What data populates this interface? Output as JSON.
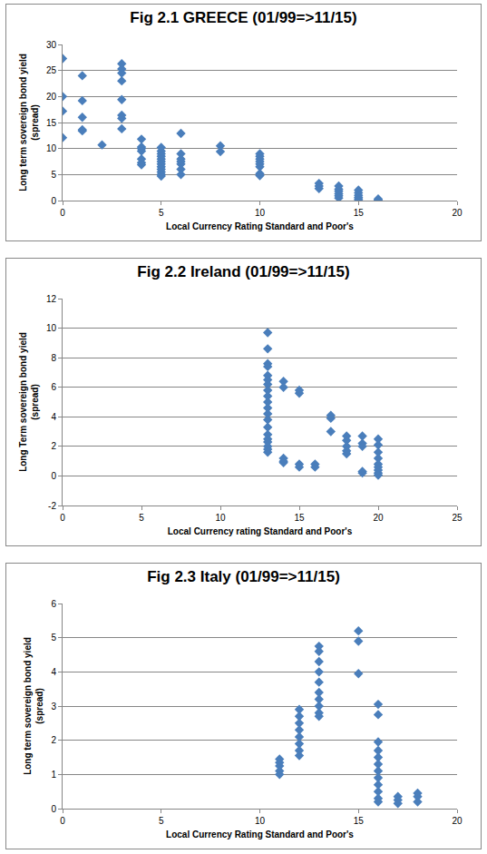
{
  "chart_data": [
    {
      "type": "scatter",
      "title": "Fig 2.1 GREECE (01/99=>11/15)",
      "x_label": "Local Currency Rating Standard and Poor's",
      "y_label": "Long term sovereign bond yield (spread)",
      "x": [
        0,
        0,
        0,
        0,
        1,
        1,
        1,
        1,
        1,
        2,
        3,
        3,
        3,
        3,
        3,
        3,
        3,
        3,
        4,
        4,
        4,
        4,
        4,
        4,
        4,
        5,
        5,
        5,
        5,
        5,
        5,
        5,
        5,
        5,
        5,
        5,
        5,
        6,
        6,
        6,
        6,
        6,
        6,
        6,
        8,
        8,
        10,
        10,
        10,
        10,
        10,
        10,
        10,
        10,
        13,
        13,
        13,
        14,
        14,
        14,
        14,
        14,
        14,
        15,
        15,
        15,
        15,
        15,
        15,
        16,
        16
      ],
      "values": [
        27.3,
        20,
        17.2,
        12.1,
        24,
        19.2,
        16,
        13.6,
        13.4,
        10.7,
        26.3,
        25.3,
        24.5,
        23,
        19.4,
        16.4,
        15.8,
        13.8,
        11.8,
        10.3,
        10,
        9.5,
        8,
        7.3,
        6.9,
        10.2,
        9.5,
        9,
        8.5,
        8,
        7.5,
        7,
        6.5,
        6,
        5.5,
        5,
        4.7,
        12.9,
        9,
        8,
        7.5,
        7,
        6,
        5,
        10.5,
        9.4,
        9,
        8.5,
        8,
        7.5,
        7,
        6.5,
        5.2,
        4.8,
        3.3,
        2.8,
        2.3,
        2.8,
        2.2,
        1.8,
        1.3,
        0.9,
        0.5,
        2,
        1.5,
        1,
        0.6,
        0.3,
        0,
        0.3,
        0.1
      ],
      "color": "#4a7ebb",
      "marker": "diamond",
      "xlim": [
        0,
        20
      ],
      "xticks": [
        0,
        5,
        10,
        15,
        20
      ],
      "ylim": [
        0,
        30
      ],
      "yticks": [
        0,
        5,
        10,
        15,
        20,
        25,
        30
      ],
      "grid": true
    },
    {
      "type": "scatter",
      "title": "Fig 2.2 Ireland (01/99=>11/15)",
      "x_label": "Local Currency rating Standard and Poor's",
      "y_label": "Long Term sovereign bond yield (spread)",
      "x": [
        13,
        13,
        13,
        13,
        13,
        13,
        13,
        13,
        13,
        13,
        13,
        13,
        13,
        13,
        13,
        13,
        13,
        13,
        13,
        13,
        14,
        14,
        14,
        14,
        14,
        15,
        15,
        15,
        15,
        16,
        16,
        17,
        17,
        17,
        18,
        18,
        18,
        18,
        18,
        19,
        19,
        19,
        19,
        19,
        20,
        20,
        20,
        20,
        20,
        20,
        20,
        20,
        20
      ],
      "values": [
        9.7,
        8.6,
        7.6,
        7.4,
        6.8,
        6.5,
        6.2,
        5.8,
        5.4,
        5,
        4.6,
        4.2,
        3.8,
        3.3,
        2.8,
        2.5,
        2.3,
        2,
        1.8,
        1.6,
        6.4,
        6,
        1.2,
        1,
        0.9,
        5.8,
        5.6,
        0.8,
        0.6,
        0.8,
        0.6,
        4.1,
        3.9,
        3,
        2.7,
        2.4,
        2,
        1.7,
        1.5,
        2.7,
        2.2,
        2,
        0.3,
        0.2,
        2.5,
        2.1,
        1.6,
        1.2,
        0.8,
        0.6,
        0.4,
        0.2,
        0.05
      ],
      "color": "#4a7ebb",
      "marker": "diamond",
      "xlim": [
        0,
        25
      ],
      "xticks": [
        0,
        5,
        10,
        15,
        20,
        25
      ],
      "ylim": [
        -2,
        12
      ],
      "yticks": [
        -2,
        0,
        2,
        4,
        6,
        8,
        10,
        12
      ],
      "grid": true
    },
    {
      "type": "scatter",
      "title": "Fig 2.3 Italy (01/99=>11/15)",
      "x_label": "Local Currency Rating Standard and Poor's",
      "y_label": "Long term sovereign bond yield (spread)",
      "x": [
        11,
        11,
        11,
        11,
        11,
        12,
        12,
        12,
        12,
        12,
        12,
        12,
        12,
        13,
        13,
        13,
        13,
        13,
        13,
        13,
        13,
        13,
        13,
        15,
        15,
        15,
        16,
        16,
        16,
        16,
        16,
        16,
        16,
        16,
        16,
        16,
        16,
        16,
        17,
        17,
        17,
        18,
        18,
        18
      ],
      "values": [
        1.45,
        1.35,
        1.25,
        1.1,
        1,
        2.9,
        2.7,
        2.5,
        2.3,
        2.1,
        1.9,
        1.7,
        1.55,
        4.75,
        4.6,
        4.3,
        4,
        3.7,
        3.4,
        3.2,
        3,
        2.8,
        2.7,
        5.2,
        4.9,
        3.95,
        3.05,
        2.75,
        1.95,
        1.7,
        1.5,
        1.3,
        1.1,
        0.9,
        0.7,
        0.5,
        0.3,
        0.2,
        0.35,
        0.25,
        0.15,
        0.45,
        0.35,
        0.2
      ],
      "color": "#4a7ebb",
      "marker": "diamond",
      "xlim": [
        0,
        20
      ],
      "xticks": [
        0,
        5,
        10,
        15,
        20
      ],
      "ylim": [
        0,
        6
      ],
      "yticks": [
        0,
        1,
        2,
        3,
        4,
        5,
        6
      ],
      "grid": true
    }
  ]
}
